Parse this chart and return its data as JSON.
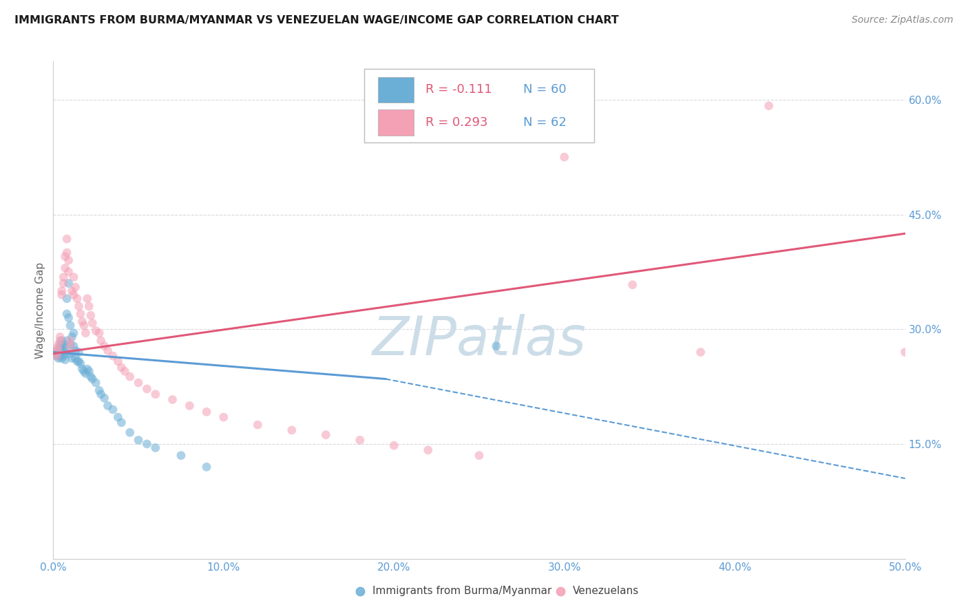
{
  "title": "IMMIGRANTS FROM BURMA/MYANMAR VS VENEZUELAN WAGE/INCOME GAP CORRELATION CHART",
  "source": "Source: ZipAtlas.com",
  "xlabel_ticks": [
    "0.0%",
    "10.0%",
    "20.0%",
    "30.0%",
    "40.0%",
    "50.0%"
  ],
  "xlabel_vals": [
    0.0,
    0.1,
    0.2,
    0.3,
    0.4,
    0.5
  ],
  "ylabel_ticks_right": [
    "15.0%",
    "30.0%",
    "45.0%",
    "60.0%"
  ],
  "ylabel_vals_right": [
    0.15,
    0.3,
    0.45,
    0.6
  ],
  "ylabel_label": "Wage/Income Gap",
  "xlim": [
    0.0,
    0.5
  ],
  "ylim": [
    0.0,
    0.65
  ],
  "legend_color1": "#6baed6",
  "legend_color2": "#f4a0b5",
  "watermark": "ZIPatlas",
  "watermark_color": "#ccdde8",
  "scatter_blue_x": [
    0.001,
    0.002,
    0.002,
    0.003,
    0.003,
    0.003,
    0.004,
    0.004,
    0.004,
    0.004,
    0.005,
    0.005,
    0.005,
    0.005,
    0.006,
    0.006,
    0.006,
    0.007,
    0.007,
    0.007,
    0.008,
    0.008,
    0.008,
    0.009,
    0.009,
    0.01,
    0.01,
    0.01,
    0.011,
    0.011,
    0.012,
    0.012,
    0.013,
    0.013,
    0.014,
    0.015,
    0.015,
    0.016,
    0.017,
    0.018,
    0.019,
    0.02,
    0.021,
    0.022,
    0.023,
    0.025,
    0.027,
    0.028,
    0.03,
    0.032,
    0.035,
    0.038,
    0.04,
    0.045,
    0.05,
    0.055,
    0.06,
    0.075,
    0.09,
    0.26
  ],
  "scatter_blue_y": [
    0.268,
    0.265,
    0.272,
    0.27,
    0.268,
    0.262,
    0.275,
    0.28,
    0.27,
    0.265,
    0.285,
    0.278,
    0.27,
    0.262,
    0.28,
    0.272,
    0.265,
    0.275,
    0.268,
    0.26,
    0.34,
    0.32,
    0.285,
    0.36,
    0.315,
    0.305,
    0.28,
    0.268,
    0.29,
    0.262,
    0.295,
    0.278,
    0.272,
    0.262,
    0.258,
    0.27,
    0.258,
    0.255,
    0.248,
    0.245,
    0.242,
    0.248,
    0.245,
    0.238,
    0.235,
    0.23,
    0.22,
    0.215,
    0.21,
    0.2,
    0.195,
    0.185,
    0.178,
    0.165,
    0.155,
    0.15,
    0.145,
    0.135,
    0.12,
    0.278
  ],
  "scatter_pink_x": [
    0.001,
    0.002,
    0.002,
    0.003,
    0.003,
    0.004,
    0.004,
    0.005,
    0.005,
    0.006,
    0.006,
    0.007,
    0.007,
    0.008,
    0.008,
    0.009,
    0.009,
    0.01,
    0.01,
    0.011,
    0.012,
    0.012,
    0.013,
    0.014,
    0.015,
    0.016,
    0.017,
    0.018,
    0.019,
    0.02,
    0.021,
    0.022,
    0.023,
    0.025,
    0.027,
    0.028,
    0.03,
    0.032,
    0.035,
    0.038,
    0.04,
    0.042,
    0.045,
    0.05,
    0.055,
    0.06,
    0.07,
    0.08,
    0.09,
    0.1,
    0.12,
    0.14,
    0.16,
    0.18,
    0.2,
    0.22,
    0.25,
    0.3,
    0.34,
    0.38,
    0.42,
    0.5
  ],
  "scatter_pink_y": [
    0.268,
    0.275,
    0.265,
    0.28,
    0.272,
    0.29,
    0.285,
    0.35,
    0.345,
    0.368,
    0.36,
    0.395,
    0.38,
    0.418,
    0.4,
    0.39,
    0.375,
    0.285,
    0.278,
    0.35,
    0.345,
    0.368,
    0.355,
    0.34,
    0.33,
    0.32,
    0.31,
    0.305,
    0.295,
    0.34,
    0.33,
    0.318,
    0.308,
    0.298,
    0.295,
    0.285,
    0.278,
    0.272,
    0.265,
    0.258,
    0.25,
    0.245,
    0.238,
    0.23,
    0.222,
    0.215,
    0.208,
    0.2,
    0.192,
    0.185,
    0.175,
    0.168,
    0.162,
    0.155,
    0.148,
    0.142,
    0.135,
    0.525,
    0.358,
    0.27,
    0.592,
    0.27
  ],
  "trendline_blue_x0": 0.0,
  "trendline_blue_y0": 0.27,
  "trendline_blue_x1": 0.195,
  "trendline_blue_y1": 0.235,
  "trendline_blue_xdash_end": 0.5,
  "trendline_blue_ydash_end": 0.105,
  "trendline_blue_color": "#5b9bd5",
  "trendline_pink_x0": 0.0,
  "trendline_pink_y0": 0.268,
  "trendline_pink_x1": 0.5,
  "trendline_pink_y1": 0.425,
  "trendline_pink_color": "#e05878",
  "background_color": "#ffffff",
  "grid_color": "#d8d8e0",
  "scatter_alpha": 0.55,
  "scatter_size": 85
}
